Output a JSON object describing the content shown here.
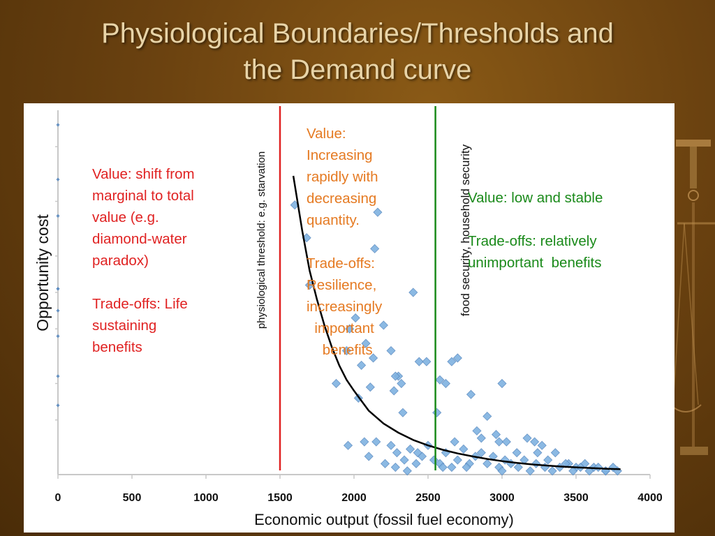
{
  "slide": {
    "title_line1": "Physiological Boundaries/Thresholds and",
    "title_line2": "the Demand curve",
    "colors": {
      "background": "#6b4210",
      "title": "#e8d4a8",
      "threshold_red": "#e02222",
      "threshold_green": "#1a8a1a",
      "points": "#7fb2e0",
      "curve": "#000000"
    }
  },
  "chart_data": {
    "type": "scatter",
    "xlabel": "Economic output (fossil fuel economy)",
    "ylabel": "Opportunity cost",
    "xlim": [
      0,
      4000
    ],
    "ylim": [
      0,
      100
    ],
    "x_ticks": [
      "0",
      "500",
      "1000",
      "1500",
      "2000",
      "2500",
      "3000",
      "3500",
      "4000"
    ],
    "grid": false,
    "series": [
      {
        "kind": "points",
        "points": [
          [
            0,
            96
          ],
          [
            0,
            81
          ],
          [
            0,
            71
          ],
          [
            0,
            51
          ],
          [
            0,
            51
          ],
          [
            0,
            45
          ],
          [
            0,
            38
          ],
          [
            0,
            27
          ],
          [
            0,
            19
          ],
          [
            1600,
            74
          ],
          [
            1680,
            65
          ],
          [
            1700,
            52
          ],
          [
            1880,
            25
          ],
          [
            1950,
            34
          ],
          [
            1970,
            40
          ],
          [
            2010,
            43
          ],
          [
            2030,
            21
          ],
          [
            2050,
            30
          ],
          [
            2080,
            36
          ],
          [
            2110,
            24
          ],
          [
            2130,
            32
          ],
          [
            2140,
            62
          ],
          [
            2160,
            72
          ],
          [
            2200,
            41
          ],
          [
            2250,
            34
          ],
          [
            2270,
            23
          ],
          [
            2300,
            27
          ],
          [
            2320,
            25
          ],
          [
            2280,
            27
          ],
          [
            2330,
            17
          ],
          [
            2400,
            50
          ],
          [
            2440,
            31
          ],
          [
            2490,
            31
          ],
          [
            2560,
            17
          ],
          [
            2580,
            26
          ],
          [
            2620,
            25
          ],
          [
            2660,
            31
          ],
          [
            2700,
            32
          ],
          [
            2790,
            22
          ],
          [
            3000,
            25
          ],
          [
            2830,
            12
          ],
          [
            2900,
            16
          ],
          [
            2960,
            11
          ],
          [
            2980,
            9
          ],
          [
            3030,
            9
          ],
          [
            3100,
            6
          ],
          [
            3170,
            10
          ],
          [
            3220,
            9
          ],
          [
            3270,
            8
          ],
          [
            3310,
            4
          ],
          [
            3360,
            6
          ],
          [
            3450,
            3
          ],
          [
            3500,
            2
          ],
          [
            3560,
            3
          ],
          [
            3620,
            2
          ],
          [
            3700,
            1
          ],
          [
            3780,
            1
          ],
          [
            1960,
            8
          ],
          [
            2070,
            9
          ],
          [
            2150,
            9
          ],
          [
            2210,
            3
          ],
          [
            2250,
            8
          ],
          [
            2290,
            6
          ],
          [
            2340,
            4
          ],
          [
            2380,
            7
          ],
          [
            2420,
            3
          ],
          [
            2460,
            5
          ],
          [
            2500,
            8
          ],
          [
            2540,
            4
          ],
          [
            2580,
            3
          ],
          [
            2620,
            6
          ],
          [
            2660,
            2
          ],
          [
            2700,
            4
          ],
          [
            2740,
            7
          ],
          [
            2780,
            3
          ],
          [
            2820,
            5
          ],
          [
            2860,
            6
          ],
          [
            2900,
            3
          ],
          [
            2940,
            5
          ],
          [
            2980,
            2
          ],
          [
            3020,
            4
          ],
          [
            3060,
            3
          ],
          [
            3110,
            2
          ],
          [
            3150,
            4
          ],
          [
            3190,
            1
          ],
          [
            3230,
            3
          ],
          [
            3290,
            2
          ],
          [
            3340,
            1
          ],
          [
            3390,
            2
          ],
          [
            3430,
            3
          ],
          [
            3480,
            1
          ],
          [
            3530,
            2
          ],
          [
            3590,
            1
          ],
          [
            3650,
            2
          ],
          [
            3700,
            1
          ],
          [
            3750,
            2
          ],
          [
            2600,
            2
          ],
          [
            2680,
            9
          ],
          [
            2760,
            2
          ],
          [
            3000,
            1
          ],
          [
            2100,
            5
          ],
          [
            2280,
            2
          ],
          [
            2360,
            1
          ],
          [
            2430,
            6
          ],
          [
            2860,
            10
          ],
          [
            3240,
            6
          ]
        ]
      },
      {
        "kind": "curve",
        "x": [
          1590,
          1650,
          1700,
          1750,
          1800,
          1850,
          1900,
          1950,
          2000,
          2100,
          2200,
          2300,
          2400,
          2500,
          2600,
          2700,
          2800,
          2900,
          3000,
          3100,
          3200,
          3300,
          3400,
          3500,
          3600,
          3700,
          3800
        ],
        "y": [
          82,
          67,
          56,
          48,
          41,
          35,
          30,
          26,
          23,
          17.5,
          14,
          11.5,
          9.5,
          8,
          6.8,
          5.8,
          5,
          4.3,
          3.7,
          3.2,
          2.8,
          2.5,
          2.2,
          2,
          1.8,
          1.6,
          1.5
        ]
      }
    ],
    "thresholds": [
      {
        "x": 1500,
        "label": "physiological threshold: e.g. starvation"
      },
      {
        "x": 2550,
        "label": "food security, household security"
      }
    ],
    "annotations": {
      "left": "Value: shift from\nmarginal to total\nvalue (e.g.\ndiamond-water\nparadox)\n\nTrade-offs: Life\nsustaining\nbenefits",
      "middle": "Value:\nIncreasing\nrapidly with\ndecreasing\nquantity.\n\nTrade-offs:\nResilience,\nincreasingly\n  important\n    benefits",
      "right": "Value: low and stable\n\nTrade-offs: relatively\nunimportant  benefits"
    }
  }
}
